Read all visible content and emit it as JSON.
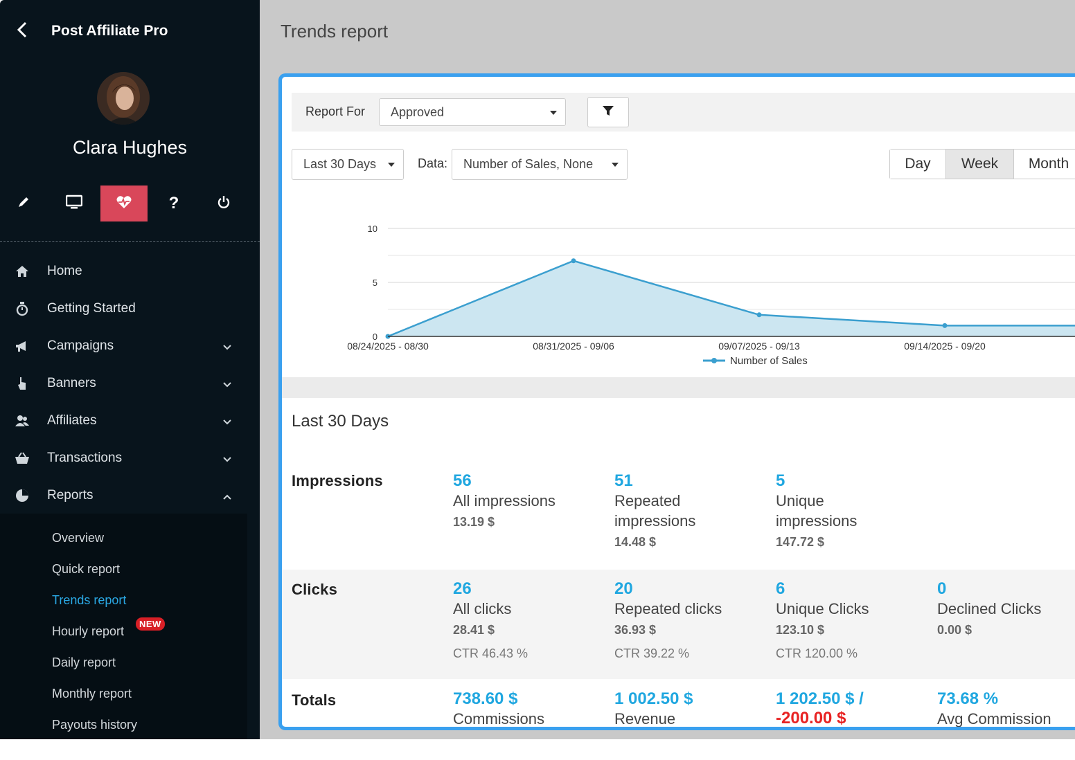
{
  "app": {
    "name": "Post Affiliate Pro",
    "page_title": "Trends report"
  },
  "user": {
    "name": "Clara Hughes"
  },
  "toolbar_icons": [
    "pencil-icon",
    "monitor-icon",
    "heartbeat-icon",
    "help-icon",
    "power-icon"
  ],
  "nav": {
    "items": [
      {
        "label": "Home",
        "icon": "home-icon"
      },
      {
        "label": "Getting Started",
        "icon": "stopwatch-icon"
      },
      {
        "label": "Campaigns",
        "icon": "megaphone-icon"
      },
      {
        "label": "Banners",
        "icon": "hand-pointer-icon"
      },
      {
        "label": "Affiliates",
        "icon": "users-icon"
      },
      {
        "label": "Transactions",
        "icon": "basket-icon"
      },
      {
        "label": "Reports",
        "icon": "pie-chart-icon"
      }
    ],
    "report_sub": [
      "Overview",
      "Quick report",
      "Trends report",
      "Hourly report",
      "Daily report",
      "Monthly report",
      "Payouts history"
    ],
    "new_badge": "NEW"
  },
  "filters": {
    "report_for_label": "Report For",
    "report_for_value": "Approved",
    "period": "Last 30 Days",
    "data_label": "Data:",
    "data_value": "Number of Sales, None",
    "granularity": [
      "Day",
      "Week",
      "Month"
    ],
    "granularity_selected": "Week"
  },
  "chart_data": {
    "type": "area",
    "x": [
      "08/24/2025 - 08/30",
      "08/31/2025 - 09/06",
      "09/07/2025 - 09/13",
      "09/14/2025 - 09/20",
      ""
    ],
    "series": [
      {
        "name": "Number of Sales",
        "values": [
          0,
          7,
          2,
          1,
          1
        ]
      }
    ],
    "y_ticks": [
      0,
      5,
      10
    ],
    "ylim": [
      0,
      10
    ],
    "legend": "bottom-center",
    "grid": true,
    "color": "#3b9fcf",
    "fill": "#cce6f1"
  },
  "summary": {
    "title": "Last 30 Days",
    "impressions": {
      "label": "Impressions",
      "stats": [
        {
          "value": "56",
          "desc": "All impressions",
          "money": "13.19 $"
        },
        {
          "value": "51",
          "desc": "Repeated impressions",
          "money": "14.48 $"
        },
        {
          "value": "5",
          "desc": "Unique impressions",
          "money": "147.72 $"
        }
      ]
    },
    "clicks": {
      "label": "Clicks",
      "stats": [
        {
          "value": "26",
          "desc": "All clicks",
          "money": "28.41 $",
          "ctr": "CTR 46.43 %"
        },
        {
          "value": "20",
          "desc": "Repeated clicks",
          "money": "36.93 $",
          "ctr": "CTR 39.22 %"
        },
        {
          "value": "6",
          "desc": "Unique Clicks",
          "money": "123.10 $",
          "ctr": "CTR 120.00 %"
        },
        {
          "value": "0",
          "desc": "Declined Clicks",
          "money": "0.00 $"
        }
      ]
    },
    "totals": {
      "label": "Totals",
      "stats": [
        {
          "value": "738.60 $",
          "desc": "Commissions"
        },
        {
          "value": "1 002.50 $",
          "desc": "Revenue"
        },
        {
          "value": "1 202.50 $ /",
          "value2": "-200.00 $"
        },
        {
          "value": "73.68 %",
          "desc": "Avg Commission"
        }
      ]
    }
  },
  "colors": {
    "sidebar": "#08141c",
    "accent": "#20a7e0",
    "active_tool": "#d9475a",
    "panel_border": "#3aa0ef",
    "negative": "#e82323"
  }
}
